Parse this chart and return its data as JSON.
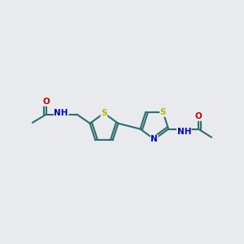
{
  "bg_color": "#e8eaee",
  "atom_color_C": "#2d6e6e",
  "atom_color_N": "#0000cc",
  "atom_color_O": "#cc0000",
  "atom_color_S": "#b8b800",
  "bond_color": "#2d6e6e",
  "line_width": 1.5,
  "font_size_atom": 7.5,
  "fig_width": 3.0,
  "fig_height": 3.0,
  "xlim": [
    0,
    10
  ],
  "ylim": [
    2,
    8
  ]
}
